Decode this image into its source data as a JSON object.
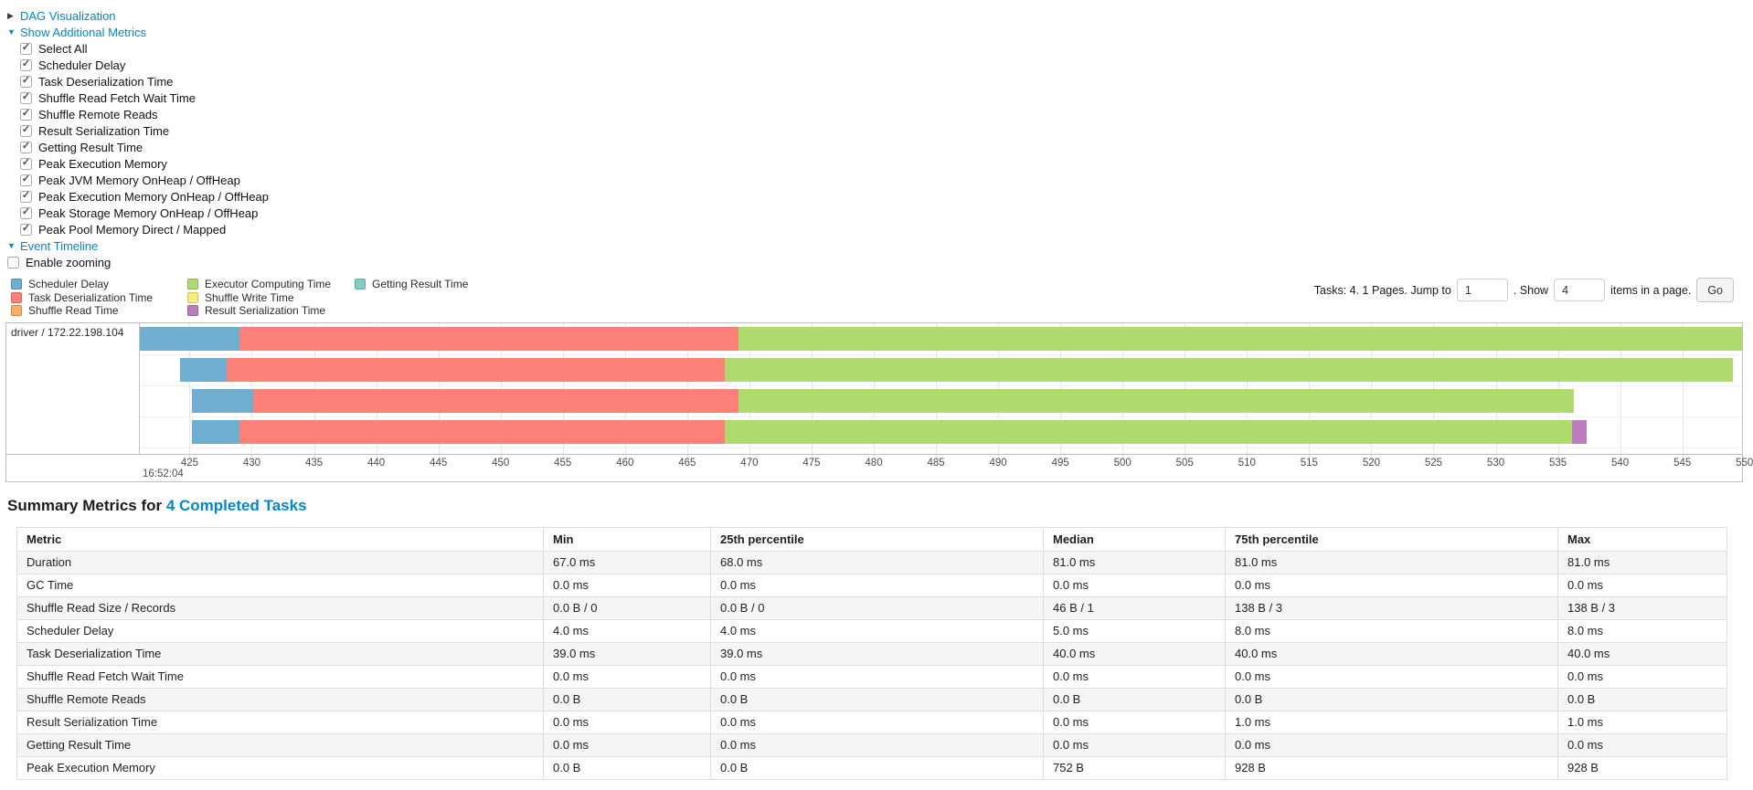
{
  "panels": {
    "dag": {
      "arrow": "▶",
      "label": "DAG Visualization"
    },
    "metrics": {
      "arrow": "▼",
      "label": "Show Additional Metrics"
    },
    "event_timeline": {
      "arrow": "▼",
      "label": "Event Timeline"
    },
    "enable_zooming_label": "Enable zooming",
    "metric_options": [
      "Select All",
      "Scheduler Delay",
      "Task Deserialization Time",
      "Shuffle Read Fetch Wait Time",
      "Shuffle Remote Reads",
      "Result Serialization Time",
      "Getting Result Time",
      "Peak Execution Memory",
      "Peak JVM Memory OnHeap / OffHeap",
      "Peak Execution Memory OnHeap / OffHeap",
      "Peak Storage Memory OnHeap / OffHeap",
      "Peak Pool Memory Direct / Mapped"
    ]
  },
  "legend": {
    "items": [
      {
        "label": "Scheduler Delay",
        "color": "#6FADD1"
      },
      {
        "label": "Task Deserialization Time",
        "color": "#FB8077"
      },
      {
        "label": "Shuffle Read Time",
        "color": "#FBAD62"
      },
      {
        "label": "Executor Computing Time",
        "color": "#AFDA70"
      },
      {
        "label": "Shuffle Write Time",
        "color": "#FAEC7D"
      },
      {
        "label": "Result Serialization Time",
        "color": "#B97EBB"
      },
      {
        "label": "Getting Result Time",
        "color": "#82CDBF"
      }
    ]
  },
  "pagination": {
    "prefix": "Tasks: 4. 1 Pages. Jump to",
    "jump_value": "1",
    "mid": ". Show",
    "show_value": "4",
    "suffix": "items in a page.",
    "go_label": "Go"
  },
  "chart_data": {
    "type": "bar",
    "subtype": "horizontal-stacked-event-timeline",
    "title": "Event Timeline",
    "group_label": "driver / 172.22.198.104",
    "x_domain": [
      421.0,
      549.8
    ],
    "x_ticks": [
      425,
      430,
      435,
      440,
      445,
      450,
      455,
      460,
      465,
      470,
      475,
      480,
      485,
      490,
      495,
      500,
      505,
      510,
      515,
      520,
      525,
      530,
      535,
      540,
      545,
      550
    ],
    "x_major_label": "16:52:04",
    "grid": true,
    "legend_position": "top-left",
    "colors": {
      "Scheduler Delay": "#6FADD1",
      "Task Deserialization Time": "#FB8077",
      "Shuffle Read Time": "#FBAD62",
      "Executor Computing Time": "#AFDA70",
      "Shuffle Write Time": "#FAEC7D",
      "Result Serialization Time": "#B97EBB",
      "Getting Result Time": "#82CDBF"
    },
    "tasks": [
      {
        "segments": [
          {
            "name": "Scheduler Delay",
            "start": 421.0,
            "end": 429.0
          },
          {
            "name": "Task Deserialization Time",
            "start": 429.0,
            "end": 469.1
          },
          {
            "name": "Executor Computing Time",
            "start": 469.1,
            "end": 550.0
          }
        ]
      },
      {
        "segments": [
          {
            "name": "Scheduler Delay",
            "start": 424.2,
            "end": 428.0
          },
          {
            "name": "Task Deserialization Time",
            "start": 428.0,
            "end": 468.0
          },
          {
            "name": "Executor Computing Time",
            "start": 468.0,
            "end": 549.1
          }
        ]
      },
      {
        "segments": [
          {
            "name": "Scheduler Delay",
            "start": 425.2,
            "end": 430.1
          },
          {
            "name": "Task Deserialization Time",
            "start": 430.1,
            "end": 469.1
          },
          {
            "name": "Executor Computing Time",
            "start": 469.1,
            "end": 536.3
          }
        ]
      },
      {
        "segments": [
          {
            "name": "Scheduler Delay",
            "start": 425.2,
            "end": 429.0
          },
          {
            "name": "Task Deserialization Time",
            "start": 429.0,
            "end": 468.0
          },
          {
            "name": "Executor Computing Time",
            "start": 468.0,
            "end": 536.1
          },
          {
            "name": "Result Serialization Time",
            "start": 536.1,
            "end": 537.3
          }
        ]
      }
    ]
  },
  "summary": {
    "heading_prefix": "Summary Metrics for ",
    "heading_link": "4 Completed Tasks",
    "table": {
      "headers": [
        "Metric",
        "Min",
        "25th percentile",
        "Median",
        "75th percentile",
        "Max"
      ],
      "rows": [
        [
          "Duration",
          "67.0 ms",
          "68.0 ms",
          "81.0 ms",
          "81.0 ms",
          "81.0 ms"
        ],
        [
          "GC Time",
          "0.0 ms",
          "0.0 ms",
          "0.0 ms",
          "0.0 ms",
          "0.0 ms"
        ],
        [
          "Shuffle Read Size / Records",
          "0.0 B / 0",
          "0.0 B / 0",
          "46 B / 1",
          "138 B / 3",
          "138 B / 3"
        ],
        [
          "Scheduler Delay",
          "4.0 ms",
          "4.0 ms",
          "5.0 ms",
          "8.0 ms",
          "8.0 ms"
        ],
        [
          "Task Deserialization Time",
          "39.0 ms",
          "39.0 ms",
          "40.0 ms",
          "40.0 ms",
          "40.0 ms"
        ],
        [
          "Shuffle Read Fetch Wait Time",
          "0.0 ms",
          "0.0 ms",
          "0.0 ms",
          "0.0 ms",
          "0.0 ms"
        ],
        [
          "Shuffle Remote Reads",
          "0.0 B",
          "0.0 B",
          "0.0 B",
          "0.0 B",
          "0.0 B"
        ],
        [
          "Result Serialization Time",
          "0.0 ms",
          "0.0 ms",
          "0.0 ms",
          "1.0 ms",
          "1.0 ms"
        ],
        [
          "Getting Result Time",
          "0.0 ms",
          "0.0 ms",
          "0.0 ms",
          "0.0 ms",
          "0.0 ms"
        ],
        [
          "Peak Execution Memory",
          "0.0 B",
          "0.0 B",
          "752 B",
          "928 B",
          "928 B"
        ]
      ]
    }
  }
}
